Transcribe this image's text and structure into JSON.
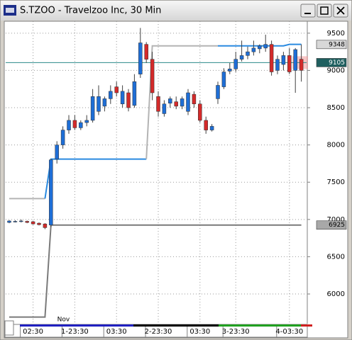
{
  "chart_data": {
    "type": "candlestick",
    "title": "S.TZOO - Travelzoo Inc, 30 Min",
    "ylim": [
      5620,
      9660
    ],
    "yticks": [
      6000,
      6500,
      7000,
      7500,
      8000,
      8500,
      9000,
      9500
    ],
    "grid": true,
    "up_color": "#1e6ed6",
    "down_color": "#d42a2a",
    "candles": {
      "open": [
        6960,
        6970,
        6980,
        6975,
        6970,
        6950,
        6940,
        6925,
        7810,
        8000,
        8200,
        8330,
        8230,
        8300,
        8330,
        8450,
        8520,
        8620,
        8780,
        8550,
        8700,
        8530,
        8950,
        9350,
        9150,
        8650,
        8420,
        8560,
        8580,
        8520,
        8450,
        8680,
        8550,
        8330,
        8200,
        8620,
        8780,
        8990,
        9020,
        9150,
        9200,
        9250,
        9290,
        9300,
        9350,
        9000,
        9080,
        9200,
        9000,
        9150
      ],
      "high": [
        6990,
        6990,
        7000,
        6985,
        6980,
        6960,
        6950,
        7810,
        8050,
        8250,
        8400,
        8400,
        8330,
        8400,
        8750,
        8800,
        8650,
        8800,
        8850,
        8800,
        8750,
        8950,
        9570,
        9380,
        9250,
        8720,
        8600,
        8650,
        8650,
        8650,
        8750,
        8720,
        8600,
        8380,
        8280,
        8850,
        9030,
        9100,
        9250,
        9400,
        9320,
        9400,
        9350,
        9480,
        9400,
        9200,
        9250,
        9300,
        9300,
        9350
      ],
      "low": [
        6950,
        6960,
        6960,
        6950,
        6930,
        6920,
        6870,
        6900,
        7750,
        7950,
        8150,
        8200,
        8200,
        8250,
        8300,
        8400,
        8450,
        8550,
        8650,
        8500,
        8450,
        8500,
        8900,
        9100,
        8600,
        8380,
        8380,
        8500,
        8480,
        8480,
        8400,
        8500,
        8300,
        8150,
        8180,
        8550,
        8750,
        8950,
        8980,
        9120,
        9150,
        9200,
        9230,
        9250,
        8930,
        8950,
        9000,
        8950,
        8700,
        8850
      ],
      "close": [
        6980,
        6975,
        6980,
        6960,
        6940,
        6930,
        6890,
        7800,
        8000,
        8200,
        8330,
        8230,
        8300,
        8330,
        8650,
        8650,
        8620,
        8720,
        8700,
        8720,
        8500,
        8850,
        9370,
        9150,
        8700,
        8450,
        8550,
        8620,
        8520,
        8620,
        8700,
        8550,
        8330,
        8200,
        8250,
        8800,
        8980,
        9020,
        9150,
        9200,
        9250,
        9300,
        9330,
        9350,
        8980,
        9150,
        9200,
        8980,
        9280,
        9000
      ]
    },
    "lines": [
      {
        "color": "#b4b4b4",
        "values": [
          7280,
          7280,
          7280,
          7280,
          7280,
          7280,
          7280,
          null,
          null,
          null,
          null,
          null,
          null,
          null,
          null,
          null,
          null,
          null,
          null,
          null,
          null,
          null,
          null,
          null,
          null,
          null,
          null,
          null,
          null,
          null,
          null,
          null,
          null,
          null,
          null,
          null,
          null,
          null,
          null,
          null,
          null,
          null,
          null,
          null,
          null,
          null,
          null,
          null,
          null,
          null
        ]
      },
      {
        "color": "#2a8ae0",
        "values": [
          null,
          null,
          null,
          null,
          null,
          null,
          7280,
          7810,
          7810,
          7810,
          7810,
          7810,
          7810,
          7810,
          7810,
          7810,
          7810,
          7810,
          7810,
          7810,
          7810,
          7810,
          7810,
          7810,
          null,
          null,
          null,
          null,
          null,
          null,
          null,
          null,
          null,
          null,
          null,
          null,
          null,
          null,
          null,
          null,
          null,
          null,
          null,
          null,
          null,
          null,
          null,
          null,
          null,
          null
        ]
      },
      {
        "color": "#b4b4b4",
        "values": [
          null,
          null,
          null,
          null,
          null,
          null,
          null,
          null,
          null,
          null,
          null,
          null,
          null,
          null,
          null,
          null,
          null,
          null,
          null,
          null,
          null,
          null,
          null,
          7810,
          9330,
          9330,
          9330,
          9330,
          9330,
          9330,
          9330,
          9330,
          9330,
          9330,
          9330,
          9330,
          null,
          null,
          null,
          null,
          null,
          null,
          null,
          null,
          null,
          null,
          null,
          null,
          null,
          null
        ]
      },
      {
        "color": "#2a8ae0",
        "values": [
          null,
          null,
          null,
          null,
          null,
          null,
          null,
          null,
          null,
          null,
          null,
          null,
          null,
          null,
          null,
          null,
          null,
          null,
          null,
          null,
          null,
          null,
          null,
          null,
          null,
          null,
          null,
          null,
          null,
          null,
          null,
          null,
          null,
          null,
          null,
          9330,
          9330,
          9330,
          9330,
          9330,
          9330,
          9330,
          9330,
          9330,
          9330,
          9330,
          9330,
          9350,
          9350,
          9350
        ]
      },
      {
        "color": "#7a7a7a",
        "values": [
          5690,
          5690,
          5690,
          5690,
          5690,
          5690,
          5690,
          6925,
          6925,
          6925,
          6925,
          6925,
          6925,
          6925,
          6925,
          6925,
          6925,
          6925,
          6925,
          6925,
          6925,
          6925,
          6925,
          6925,
          6925,
          6925,
          6925,
          6925,
          6925,
          6925,
          6925,
          6925,
          6925,
          6925,
          6925,
          6925,
          6925,
          6925,
          6925,
          6925,
          6925,
          6925,
          6925,
          6925,
          6925,
          6925,
          6925,
          6925,
          6925,
          6925
        ]
      }
    ],
    "price_markers": [
      {
        "value": 9348,
        "color": "#d8d8d8",
        "text_color": "#000000"
      },
      {
        "value": 9105,
        "color": "#1f5f5f",
        "text_color": "#ffffff"
      },
      {
        "value": 6925,
        "color": "#a8a8a8",
        "text_color": "#000000"
      }
    ],
    "reference_line": {
      "value": 9105,
      "color": "#2a8a8a"
    },
    "xticks": [
      {
        "value": 4,
        "label": "02:30"
      },
      {
        "value": 11,
        "label": "1-23:30"
      },
      {
        "value": 18,
        "label": "03:30"
      },
      {
        "value": 25,
        "label": "2-23:30"
      },
      {
        "value": 32,
        "label": "03:30"
      },
      {
        "value": 38,
        "label": "3-23:30"
      },
      {
        "value": 47,
        "label": "4-03:30"
      }
    ],
    "month_label": {
      "value": 9,
      "label": "Nov"
    }
  }
}
